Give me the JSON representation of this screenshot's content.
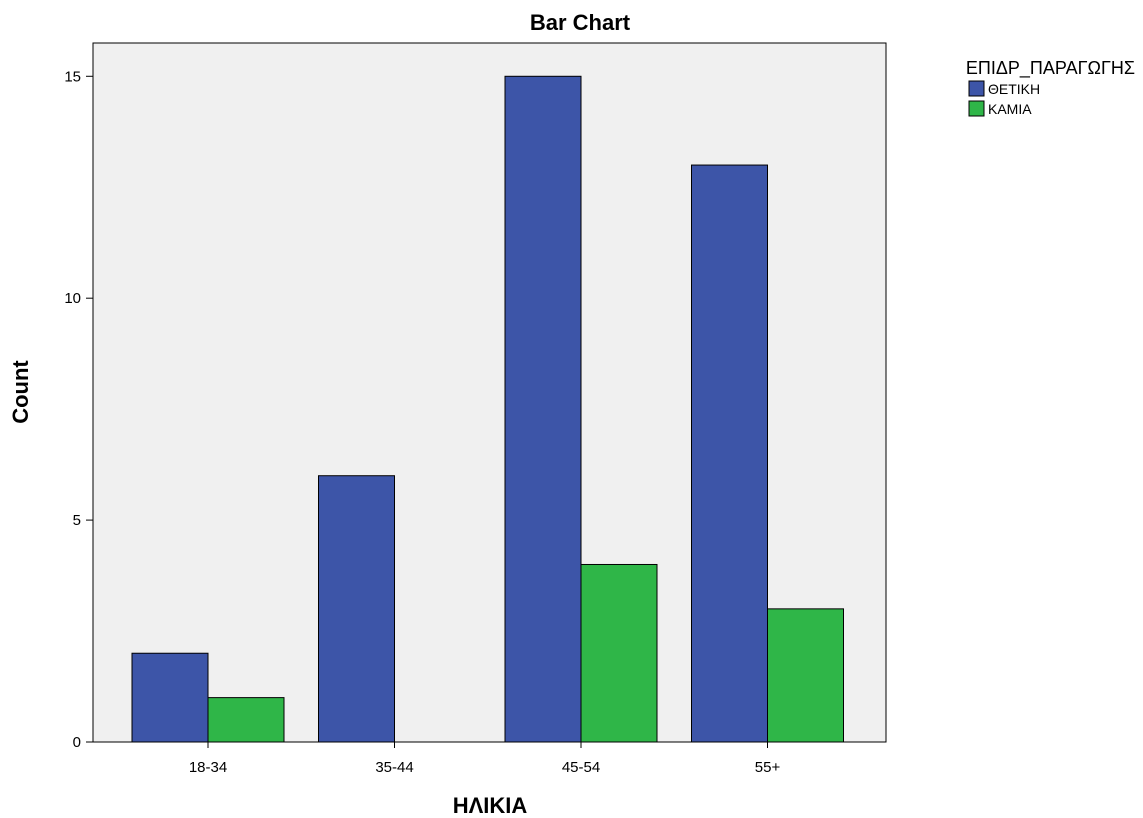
{
  "chart_data": {
    "type": "bar",
    "title": "Bar Chart",
    "xlabel": "ΗΛΙΚΙΑ",
    "ylabel": "Count",
    "categories": [
      "18-34",
      "35-44",
      "45-54",
      "55+"
    ],
    "ylim": [
      0,
      15.75
    ],
    "yticks": [
      0,
      5,
      10,
      15
    ],
    "grid": false,
    "legend": {
      "title": "ΕΠΙΔΡ_ΠΑΡΑΓΩΓΗΣ",
      "placement": "top-right outside"
    },
    "series": [
      {
        "name": "ΘΕΤΙΚΗ",
        "color": "#3d55a8",
        "values": [
          2,
          6,
          15,
          13
        ]
      },
      {
        "name": "ΚΑΜΙΑ",
        "color": "#2fb648",
        "values": [
          1,
          0,
          4,
          3
        ]
      }
    ],
    "plot_background": "#f0f0f0"
  }
}
